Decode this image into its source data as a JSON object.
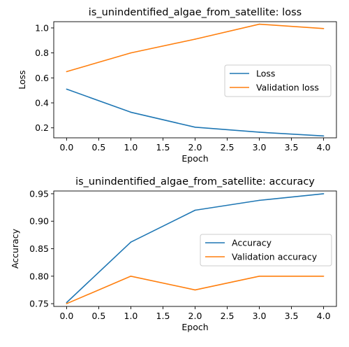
{
  "chart_data": [
    {
      "type": "line",
      "title": "is_unindentified_algae_from_satellite: loss",
      "xlabel": "Epoch",
      "ylabel": "Loss",
      "x": [
        0,
        1,
        2,
        3,
        4
      ],
      "xlim": [
        -0.2,
        4.2
      ],
      "ylim": [
        0.12,
        1.05
      ],
      "xticks": [
        0.0,
        0.5,
        1.0,
        1.5,
        2.0,
        2.5,
        3.0,
        3.5,
        4.0
      ],
      "yticks": [
        0.2,
        0.4,
        0.6,
        0.8,
        1.0
      ],
      "xtick_labels": [
        "0.0",
        "0.5",
        "1.0",
        "1.5",
        "2.0",
        "2.5",
        "3.0",
        "3.5",
        "4.0"
      ],
      "ytick_labels": [
        "0.2",
        "0.4",
        "0.6",
        "0.8",
        "1.0"
      ],
      "legend_position": "center-right",
      "grid": false,
      "series": [
        {
          "name": "Loss",
          "color": "#1f77b4",
          "values": [
            0.51,
            0.325,
            0.205,
            0.165,
            0.135
          ]
        },
        {
          "name": "Validation loss",
          "color": "#ff7f0e",
          "values": [
            0.65,
            0.8,
            0.91,
            1.03,
            0.995
          ]
        }
      ]
    },
    {
      "type": "line",
      "title": "is_unindentified_algae_from_satellite: accuracy",
      "xlabel": "Epoch",
      "ylabel": "Accuracy",
      "x": [
        0,
        1,
        2,
        3,
        4
      ],
      "xlim": [
        -0.2,
        4.2
      ],
      "ylim": [
        0.745,
        0.955
      ],
      "xticks": [
        0.0,
        0.5,
        1.0,
        1.5,
        2.0,
        2.5,
        3.0,
        3.5,
        4.0
      ],
      "yticks": [
        0.75,
        0.8,
        0.85,
        0.9,
        0.95
      ],
      "xtick_labels": [
        "0.0",
        "0.5",
        "1.0",
        "1.5",
        "2.0",
        "2.5",
        "3.0",
        "3.5",
        "4.0"
      ],
      "ytick_labels": [
        "0.75",
        "0.80",
        "0.85",
        "0.90",
        "0.95"
      ],
      "legend_position": "center-right",
      "grid": false,
      "series": [
        {
          "name": "Accuracy",
          "color": "#1f77b4",
          "values": [
            0.752,
            0.862,
            0.92,
            0.938,
            0.95
          ]
        },
        {
          "name": "Validation accuracy",
          "color": "#ff7f0e",
          "values": [
            0.75,
            0.8,
            0.775,
            0.8,
            0.8
          ]
        }
      ]
    }
  ]
}
